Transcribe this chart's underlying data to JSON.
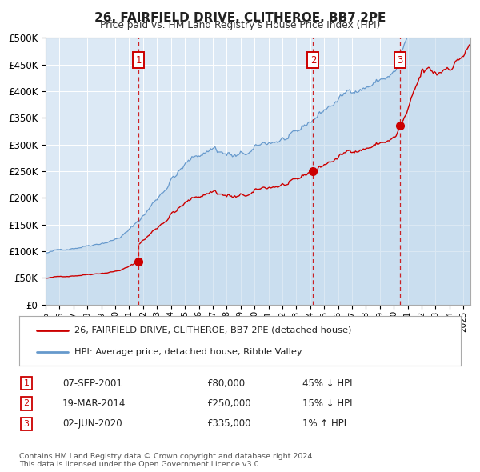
{
  "title": "26, FAIRFIELD DRIVE, CLITHEROE, BB7 2PE",
  "subtitle": "Price paid vs. HM Land Registry's House Price Index (HPI)",
  "background_color": "#ffffff",
  "plot_bg_color": "#dce9f5",
  "ylim": [
    0,
    500000
  ],
  "yticks": [
    0,
    50000,
    100000,
    150000,
    200000,
    250000,
    300000,
    350000,
    400000,
    450000,
    500000
  ],
  "ytick_labels": [
    "£0",
    "£50K",
    "£100K",
    "£150K",
    "£200K",
    "£250K",
    "£300K",
    "£350K",
    "£400K",
    "£450K",
    "£500K"
  ],
  "xlim_start": 1995.0,
  "xlim_end": 2025.5,
  "xticks": [
    1995,
    1996,
    1997,
    1998,
    1999,
    2000,
    2001,
    2002,
    2003,
    2004,
    2005,
    2006,
    2007,
    2008,
    2009,
    2010,
    2011,
    2012,
    2013,
    2014,
    2015,
    2016,
    2017,
    2018,
    2019,
    2020,
    2021,
    2022,
    2023,
    2024,
    2025
  ],
  "sale_color": "#cc0000",
  "hpi_color": "#6699cc",
  "hpi_fill_color": "#bad4ea",
  "dashed_line_color": "#cc0000",
  "legend_sale_label": "26, FAIRFIELD DRIVE, CLITHEROE, BB7 2PE (detached house)",
  "legend_hpi_label": "HPI: Average price, detached house, Ribble Valley",
  "sale_dates": [
    2001.68,
    2014.21,
    2020.42
  ],
  "sale_prices": [
    80000,
    250000,
    335000
  ],
  "sale_numbers": [
    "1",
    "2",
    "3"
  ],
  "table_rows": [
    [
      "1",
      "07-SEP-2001",
      "£80,000",
      "45% ↓ HPI"
    ],
    [
      "2",
      "19-MAR-2014",
      "£250,000",
      "15% ↓ HPI"
    ],
    [
      "3",
      "02-JUN-2020",
      "£335,000",
      "1% ↑ HPI"
    ]
  ],
  "footer_text": "Contains HM Land Registry data © Crown copyright and database right 2024.\nThis data is licensed under the Open Government Licence v3.0.",
  "grid_color": "#ffffff",
  "spine_color": "#aaaaaa"
}
